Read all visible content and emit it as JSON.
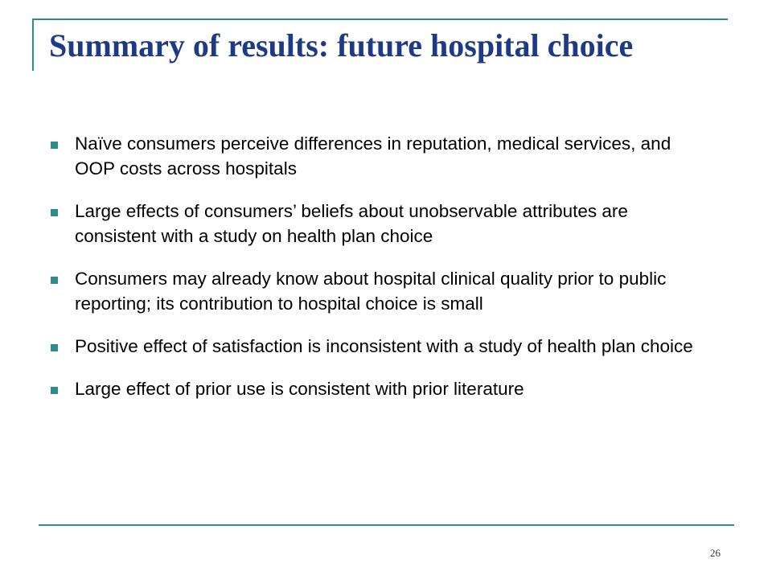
{
  "slide": {
    "title": "Summary of results: future hospital choice",
    "bullets": [
      "Naïve consumers perceive differences in reputation, medical services, and OOP costs across hospitals",
      "Large effects of consumers’ beliefs about unobservable attributes are consistent with a study on health plan choice",
      "Consumers may already know about hospital clinical quality prior to public reporting; its contribution to hospital choice is small",
      "Positive effect of satisfaction is inconsistent with a study of health plan choice",
      "Large effect of prior use is consistent with prior literature"
    ],
    "page_number": "26"
  },
  "colors": {
    "title": "#1f3a85",
    "accent_lines": "#2e8c8c",
    "bullet_marker": "#2e8c8c",
    "body_text": "#000000"
  },
  "icons": {
    "bullet": "square-bullet-icon"
  }
}
